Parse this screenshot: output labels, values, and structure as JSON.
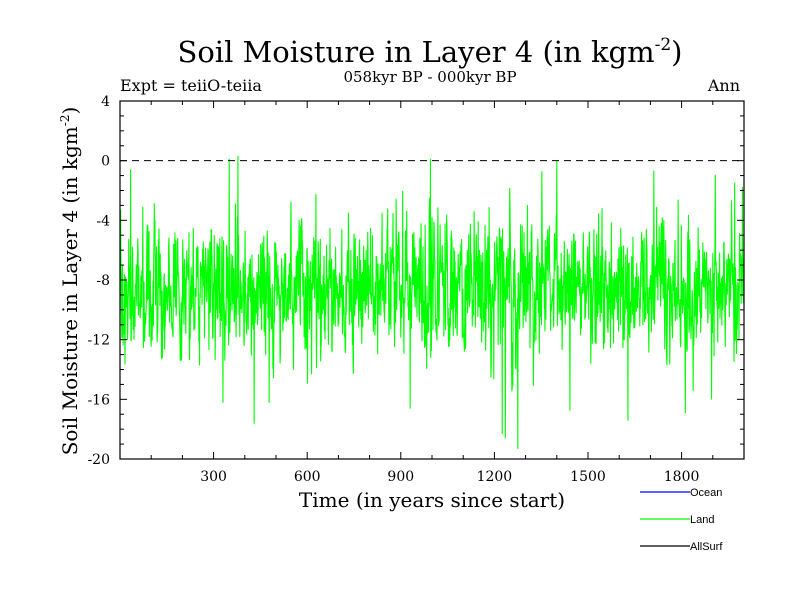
{
  "chart_data": {
    "type": "line",
    "title": "Soil Moisture in Layer 4 (in kgm",
    "title_sup": "-2",
    "title_close": ")",
    "subtitle": "058kyr BP - 000kyr BP",
    "left_label": "Expt = teiiO-teiia",
    "right_label": "Ann",
    "xlabel": "Time (in years since start)",
    "ylabel": "Soil Moisture in Layer 4 (in kgm",
    "ylabel_sup": "-2",
    "ylabel_close": ")",
    "xlim": [
      0,
      2000
    ],
    "ylim": [
      -20,
      4
    ],
    "x_ticks": [
      300,
      600,
      900,
      1200,
      1500,
      1800
    ],
    "x_tick_labels": [
      "300",
      "600",
      "900",
      "1200",
      "1500",
      "1800"
    ],
    "y_ticks": [
      4,
      0,
      -4,
      -8,
      -12,
      -16,
      -20
    ],
    "y_tick_labels": [
      "4",
      "0",
      "-4",
      "-8",
      "-12",
      "-16",
      "-20"
    ],
    "reference_line": {
      "y": 0,
      "style": "dashed"
    },
    "series": [
      {
        "name": "Ocean",
        "color": "#0000ff",
        "values": []
      },
      {
        "name": "Land",
        "color": "#00ff00",
        "generator": {
          "n_points": 2000,
          "mean": -8.6,
          "amplitude": 3.2,
          "min": -19.3,
          "max": 0.3
        },
        "extremes": [
          {
            "x": 378,
            "y": 0.3
          },
          {
            "x": 995,
            "y": 0.1
          },
          {
            "x": 1400,
            "y": 0.0
          },
          {
            "x": 350,
            "y": 0.1
          },
          {
            "x": 1275,
            "y": -19.3
          },
          {
            "x": 1235,
            "y": -18.6
          },
          {
            "x": 1225,
            "y": -18.3
          },
          {
            "x": 430,
            "y": -17.6
          },
          {
            "x": 1812,
            "y": -16.9
          },
          {
            "x": 1628,
            "y": -17.4
          },
          {
            "x": 330,
            "y": -16.2
          },
          {
            "x": 930,
            "y": -16.6
          },
          {
            "x": 478,
            "y": -16.2
          },
          {
            "x": 1970,
            "y": -1.5
          },
          {
            "x": 1995,
            "y": -1.8
          },
          {
            "x": 34,
            "y": -0.6
          }
        ]
      },
      {
        "name": "AllSurf",
        "color": "#000000",
        "values": []
      }
    ],
    "legend_position": "bottom-right",
    "grid": false
  }
}
